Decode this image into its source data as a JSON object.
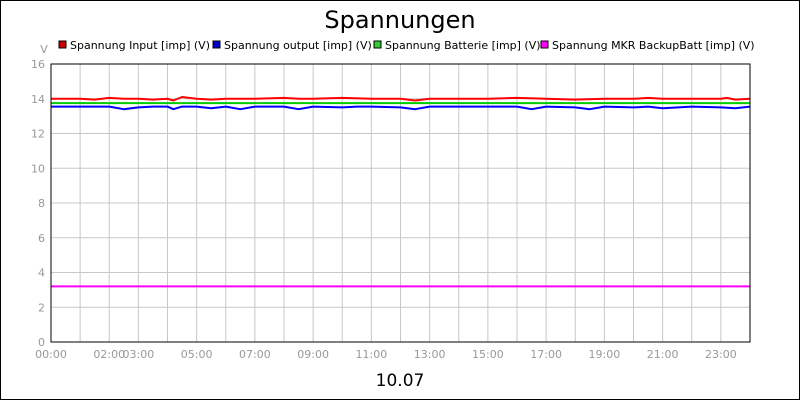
{
  "chart_data": {
    "type": "line",
    "title": "Spannungen",
    "ylabel": "V",
    "xlabel": "10.07",
    "ylim": [
      0,
      16
    ],
    "yticks": [
      0,
      2,
      4,
      6,
      8,
      10,
      12,
      14,
      16
    ],
    "xlim": [
      0,
      24
    ],
    "xtick_labels": [
      {
        "x": 0,
        "label": "00:00"
      },
      {
        "x": 2,
        "label": "02:00"
      },
      {
        "x": 3,
        "label": "03:00"
      },
      {
        "x": 5,
        "label": "05:00"
      },
      {
        "x": 7,
        "label": "07:00"
      },
      {
        "x": 9,
        "label": "09:00"
      },
      {
        "x": 11,
        "label": "11:00"
      },
      {
        "x": 13,
        "label": "13:00"
      },
      {
        "x": 15,
        "label": "15:00"
      },
      {
        "x": 17,
        "label": "17:00"
      },
      {
        "x": 19,
        "label": "19:00"
      },
      {
        "x": 21,
        "label": "21:00"
      },
      {
        "x": 23,
        "label": "23:00"
      }
    ],
    "grid": true,
    "legend_placement": "top",
    "series": [
      {
        "name": "Spannung Input [imp] (V)",
        "color": "#ff0000",
        "legend_color": "#cc0000",
        "x": [
          0,
          1,
          1.5,
          2,
          2.5,
          3,
          3.5,
          4,
          4.2,
          4.5,
          5,
          5.5,
          6,
          7,
          8,
          8.5,
          9,
          10,
          11,
          12,
          12.5,
          13,
          14,
          15,
          16,
          17,
          18,
          19,
          20,
          20.5,
          21,
          22,
          23,
          23.2,
          23.5,
          24
        ],
        "y": [
          14.0,
          14.0,
          13.95,
          14.05,
          14.0,
          14.0,
          13.95,
          14.0,
          13.9,
          14.1,
          14.0,
          13.95,
          14.0,
          14.0,
          14.05,
          14.0,
          14.0,
          14.05,
          14.0,
          14.0,
          13.9,
          14.0,
          14.0,
          14.0,
          14.05,
          14.0,
          13.95,
          14.0,
          14.0,
          14.05,
          14.0,
          14.0,
          14.0,
          14.05,
          13.95,
          14.0
        ]
      },
      {
        "name": "Spannung output [imp] (V)",
        "color": "#0000ff",
        "legend_color": "#0000cc",
        "x": [
          0,
          1,
          2,
          2.5,
          3,
          3.5,
          4,
          4.2,
          4.5,
          5,
          5.5,
          6,
          6.5,
          7,
          8,
          8.5,
          9,
          10,
          10.5,
          11,
          12,
          12.5,
          13,
          14,
          15,
          16,
          16.5,
          17,
          18,
          18.5,
          19,
          20,
          20.5,
          21,
          22,
          23,
          23.5,
          24
        ],
        "y": [
          13.55,
          13.55,
          13.55,
          13.4,
          13.5,
          13.55,
          13.55,
          13.4,
          13.55,
          13.55,
          13.45,
          13.55,
          13.4,
          13.55,
          13.55,
          13.4,
          13.55,
          13.5,
          13.55,
          13.55,
          13.5,
          13.4,
          13.55,
          13.55,
          13.55,
          13.55,
          13.4,
          13.55,
          13.5,
          13.4,
          13.55,
          13.5,
          13.55,
          13.45,
          13.55,
          13.5,
          13.45,
          13.55
        ]
      },
      {
        "name": "Spannung Batterie [imp] (V)",
        "color": "#00cc00",
        "legend_color": "#33cc33",
        "x": [
          0,
          24
        ],
        "y": [
          13.75,
          13.75
        ]
      },
      {
        "name": "Spannung MKR BackupBatt [imp] (V)",
        "color": "#ff00ff",
        "legend_color": "#ff00ff",
        "x": [
          0,
          24
        ],
        "y": [
          3.2,
          3.2
        ]
      }
    ]
  }
}
